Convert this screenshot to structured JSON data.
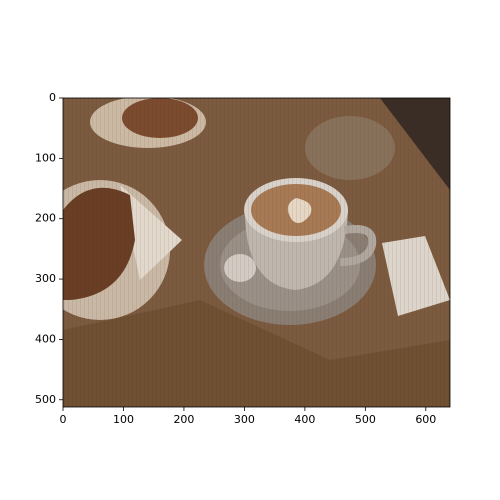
{
  "chart_data": {
    "type": "image",
    "xlim": [
      0,
      640
    ],
    "ylim": [
      512,
      0
    ],
    "xticks": [
      0,
      100,
      200,
      300,
      400,
      500,
      600
    ],
    "yticks": [
      0,
      100,
      200,
      300,
      400,
      500
    ]
  }
}
